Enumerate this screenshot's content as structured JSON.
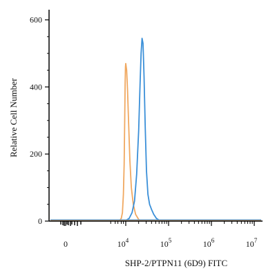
{
  "chart_data": {
    "type": "line",
    "title": "",
    "xlabel": "SHP-2/PTPN11 (6D9) FITC",
    "ylabel": "Relative Cell Number",
    "x_scale": "biexponential",
    "ylim": [
      0,
      620
    ],
    "y_ticks": [
      0,
      200,
      400,
      600
    ],
    "x_ticks": [
      {
        "value": 0,
        "base": "0",
        "exp": ""
      },
      {
        "value": 10000,
        "base": "10",
        "exp": "4"
      },
      {
        "value": 100000,
        "base": "10",
        "exp": "5"
      },
      {
        "value": 1000000,
        "base": "10",
        "exp": "6"
      },
      {
        "value": 10000000,
        "base": "10",
        "exp": "7"
      }
    ],
    "grid": false,
    "legend": "none",
    "series": [
      {
        "color": "#f0a860",
        "x": [
          3000,
          4000,
          5000,
          6000,
          7000,
          7800,
          8500,
          9100,
          9600,
          10000,
          10500,
          11000,
          11700,
          12500,
          13500,
          15000,
          17000,
          20000,
          24000
        ],
        "y": [
          0,
          2,
          8,
          25,
          80,
          170,
          300,
          410,
          460,
          470,
          450,
          390,
          290,
          180,
          100,
          50,
          20,
          5,
          0
        ]
      },
      {
        "color": "#3a8fd8",
        "x": [
          8000,
          10000,
          12000,
          14000,
          16000,
          18000,
          20000,
          21500,
          22800,
          24000,
          25300,
          26800,
          28500,
          30500,
          33000,
          36000,
          40000,
          45000,
          52000,
          60000,
          70000,
          80000
        ],
        "y": [
          0,
          2,
          8,
          25,
          60,
          140,
          270,
          400,
          500,
          545,
          530,
          430,
          280,
          150,
          80,
          50,
          35,
          20,
          8,
          3,
          1,
          0
        ]
      }
    ]
  }
}
